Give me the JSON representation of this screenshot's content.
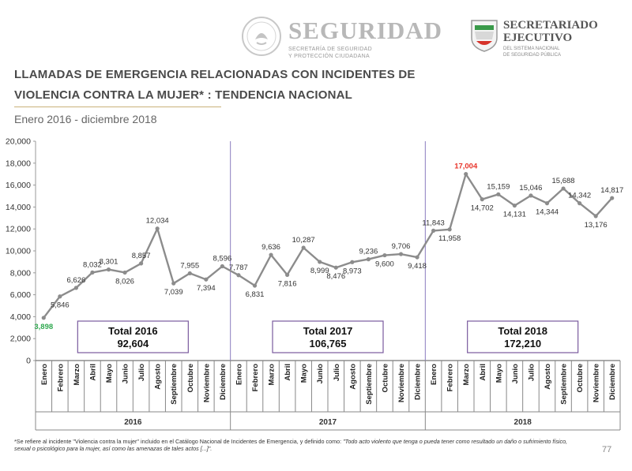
{
  "header": {
    "seguridad_title": "SEGURIDAD",
    "seguridad_sub": "SECRETARÍA DE SEGURIDAD\nY PROTECCIÓN CIUDADANA",
    "se_title": "SECRETARIADO\nEJECUTIVO",
    "se_sub": "DEL SISTEMA NACIONAL\nDE SEGURIDAD PÚBLICA"
  },
  "title_line1": "LLAMADAS DE EMERGENCIA RELACIONADAS CON INCIDENTES DE",
  "title_line2": "VIOLENCIA CONTRA LA MUJER* : TENDENCIA NACIONAL",
  "subtitle": "Enero 2016 - diciembre 2018",
  "footnote": {
    "text": "*Se refiere al incidente \"Violencia contra la mujer\" incluido en el Catálogo Nacional de Incidentes de Emergencia, y definido como: ",
    "quote": "\"Todo acto violento que tenga o pueda tener como resultado un daño o sufrimiento físico, sexual o psicológico para la mujer, así como las amenazas de tales actos [...]\"."
  },
  "page_number": "77",
  "colors": {
    "line": "#8c8c8c",
    "marker": "#8c8c8c",
    "min_label": "#2fa84f",
    "max_label": "#e8342a",
    "divider": "#8a7cc0",
    "total_box": "#7a5a9e"
  },
  "chart_data": {
    "type": "line",
    "title": "LLAMADAS DE EMERGENCIA RELACIONADAS CON INCIDENTES DE VIOLENCIA CONTRA LA MUJER* : TENDENCIA NACIONAL",
    "subtitle": "Enero 2016 - diciembre 2018",
    "ylim": [
      0,
      20000
    ],
    "yticks": [
      0,
      2000,
      4000,
      6000,
      8000,
      10000,
      12000,
      14000,
      16000,
      18000,
      20000
    ],
    "ytick_labels": [
      "0",
      "2,000",
      "4,000",
      "6,000",
      "8,000",
      "10,000",
      "12,000",
      "14,000",
      "16,000",
      "18,000",
      "20,000"
    ],
    "months": [
      "Enero",
      "Febrero",
      "Marzo",
      "Abril",
      "Mayo",
      "Junio",
      "Julio",
      "Agosto",
      "Septiembre",
      "Octubre",
      "Noviembre",
      "Diciembre"
    ],
    "years": [
      "2016",
      "2017",
      "2018"
    ],
    "values": [
      3898,
      5846,
      6626,
      8032,
      8301,
      8026,
      8857,
      12034,
      7039,
      7955,
      7394,
      8596,
      7787,
      6831,
      9636,
      7816,
      10287,
      8999,
      8476,
      8973,
      9236,
      9600,
      9706,
      9418,
      11843,
      11958,
      17004,
      14702,
      15159,
      14131,
      15046,
      14344,
      15688,
      14342,
      13176,
      14817
    ],
    "value_labels": [
      "3,898",
      "5,846",
      "6,626",
      "8,032",
      "8,301",
      "8,026",
      "8,857",
      "12,034",
      "7,039",
      "7,955",
      "7,394",
      "8,596",
      "7,787",
      "6,831",
      "9,636",
      "7,816",
      "10,287",
      "8,999",
      "8,476",
      "8,973",
      "9,236",
      "9,600",
      "9,706",
      "9,418",
      "11,843",
      "11,958",
      "17,004",
      "14,702",
      "15,159",
      "14,131",
      "15,046",
      "14,344",
      "15,688",
      "14,342",
      "13,176",
      "14,817"
    ],
    "label_side": [
      "below",
      "below",
      "above",
      "above",
      "above",
      "below",
      "above",
      "above",
      "below",
      "above",
      "below",
      "above",
      "above",
      "below",
      "above",
      "below",
      "above",
      "below",
      "below",
      "below",
      "above",
      "below",
      "above",
      "below",
      "above",
      "below",
      "above",
      "below",
      "above",
      "below",
      "above",
      "below",
      "above",
      "above",
      "below",
      "above"
    ],
    "min_index": 0,
    "max_index": 26,
    "totals": [
      {
        "label": "Total 2016",
        "value": "92,604"
      },
      {
        "label": "Total 2017",
        "value": "106,765"
      },
      {
        "label": "Total 2018",
        "value": "172,210"
      }
    ]
  }
}
